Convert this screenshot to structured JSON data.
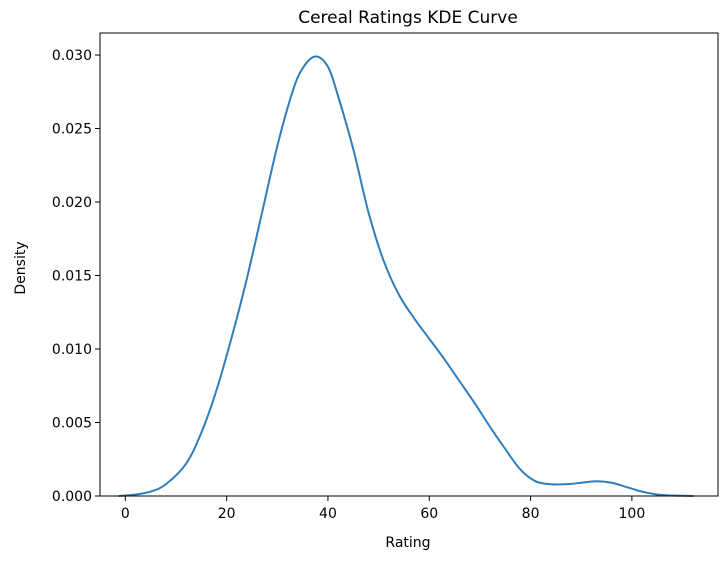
{
  "chart_data": {
    "type": "line",
    "title": "Cereal Ratings KDE Curve",
    "xlabel": "Rating",
    "ylabel": "Density",
    "xlim": [
      -5,
      117
    ],
    "ylim": [
      0,
      0.0315
    ],
    "grid": false,
    "legend": "none",
    "xticks": [
      0,
      20,
      40,
      60,
      80,
      100
    ],
    "xtick_labels": [
      "0",
      "20",
      "40",
      "60",
      "80",
      "100"
    ],
    "yticks": [
      0,
      0.005,
      0.01,
      0.015,
      0.02,
      0.025,
      0.03
    ],
    "ytick_labels": [
      "0.000",
      "0.005",
      "0.010",
      "0.015",
      "0.020",
      "0.025",
      "0.030"
    ],
    "line_color": "#2f7ebc",
    "series": [
      {
        "x": [
          -1.2,
          2,
          5,
          8,
          12,
          15,
          18,
          21,
          24,
          27,
          30,
          33,
          35,
          37.5,
          40,
          42,
          45,
          48,
          51,
          54,
          57,
          60,
          63,
          66,
          69,
          72,
          75,
          78,
          81,
          84,
          87,
          90,
          93,
          96,
          99,
          102,
          105,
          108,
          112
        ],
        "y": [
          0.0,
          0.0001,
          0.0003,
          0.0008,
          0.0022,
          0.0043,
          0.0072,
          0.0108,
          0.0148,
          0.0193,
          0.0238,
          0.0275,
          0.0291,
          0.0299,
          0.0292,
          0.0272,
          0.0236,
          0.0193,
          0.016,
          0.0137,
          0.0121,
          0.0107,
          0.0093,
          0.0078,
          0.0063,
          0.0047,
          0.0032,
          0.0018,
          0.001,
          0.0008,
          0.0008,
          0.0009,
          0.001,
          0.0009,
          0.0006,
          0.0003,
          0.0001,
          3e-05,
          0.0
        ]
      }
    ]
  }
}
